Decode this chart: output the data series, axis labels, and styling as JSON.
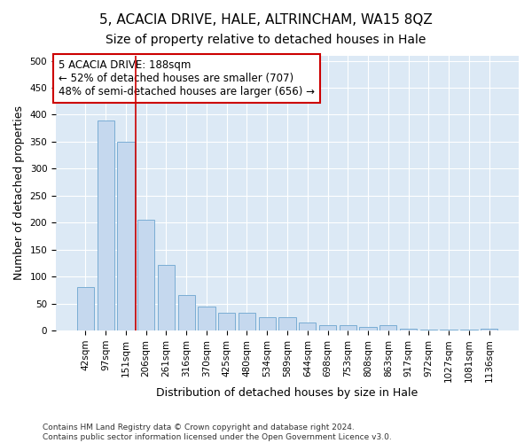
{
  "title": "5, ACACIA DRIVE, HALE, ALTRINCHAM, WA15 8QZ",
  "subtitle": "Size of property relative to detached houses in Hale",
  "xlabel": "Distribution of detached houses by size in Hale",
  "ylabel": "Number of detached properties",
  "categories": [
    "42sqm",
    "97sqm",
    "151sqm",
    "206sqm",
    "261sqm",
    "316sqm",
    "370sqm",
    "425sqm",
    "480sqm",
    "534sqm",
    "589sqm",
    "644sqm",
    "698sqm",
    "753sqm",
    "808sqm",
    "863sqm",
    "917sqm",
    "972sqm",
    "1027sqm",
    "1081sqm",
    "1136sqm"
  ],
  "values": [
    80,
    390,
    350,
    205,
    122,
    65,
    44,
    33,
    32,
    24,
    24,
    14,
    10,
    10,
    7,
    10,
    3,
    2,
    2,
    1,
    4
  ],
  "bar_color": "#c5d8ee",
  "bar_edge_color": "#7aadd4",
  "vline_x": 2.5,
  "vline_color": "#cc0000",
  "annotation_text": "5 ACACIA DRIVE: 188sqm\n← 52% of detached houses are smaller (707)\n48% of semi-detached houses are larger (656) →",
  "annotation_box_color": "#ffffff",
  "annotation_box_edge": "#cc0000",
  "ylim": [
    0,
    510
  ],
  "yticks": [
    0,
    50,
    100,
    150,
    200,
    250,
    300,
    350,
    400,
    450,
    500
  ],
  "plot_area_color": "#dce9f5",
  "footer": "Contains HM Land Registry data © Crown copyright and database right 2024.\nContains public sector information licensed under the Open Government Licence v3.0.",
  "title_fontsize": 11,
  "subtitle_fontsize": 10,
  "xlabel_fontsize": 9,
  "ylabel_fontsize": 9,
  "tick_fontsize": 7.5,
  "annotation_fontsize": 8.5,
  "footer_fontsize": 6.5
}
